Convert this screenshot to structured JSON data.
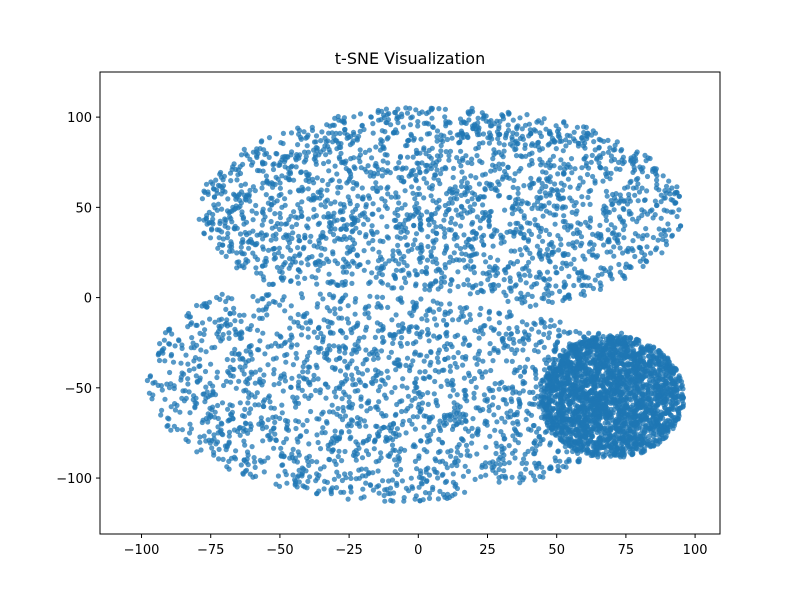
{
  "chart_data": {
    "type": "scatter",
    "title": "t-SNE Visualization",
    "xlabel": "",
    "ylabel": "",
    "xlim": [
      -115,
      109
    ],
    "ylim": [
      -131,
      125
    ],
    "xticks": [
      -100,
      -75,
      -50,
      -25,
      0,
      25,
      50,
      75,
      100
    ],
    "xtick_labels": [
      "−100",
      "−75",
      "−50",
      "−25",
      "0",
      "25",
      "50",
      "75",
      "100"
    ],
    "yticks": [
      -100,
      -50,
      0,
      50,
      100
    ],
    "ytick_labels": [
      "−100",
      "−50",
      "0",
      "50",
      "100"
    ],
    "grid": false,
    "legend": "none",
    "marker_color": "#1f77b4",
    "marker_alpha": 0.75,
    "regions": [
      {
        "name": "upper cloud",
        "center": [
          8,
          48
        ],
        "spread": [
          88,
          58
        ]
      },
      {
        "name": "lower cloud",
        "center": [
          -8,
          -45
        ],
        "spread": [
          90,
          68
        ]
      },
      {
        "name": "right lower lobe",
        "center": [
          70,
          -55
        ],
        "spread": [
          26,
          34
        ]
      }
    ],
    "gap_boundary": [
      [
        -90,
        4
      ],
      [
        -40,
        5
      ],
      [
        0,
        2
      ],
      [
        30,
        -4
      ],
      [
        60,
        -14
      ],
      [
        95,
        -16
      ]
    ]
  }
}
